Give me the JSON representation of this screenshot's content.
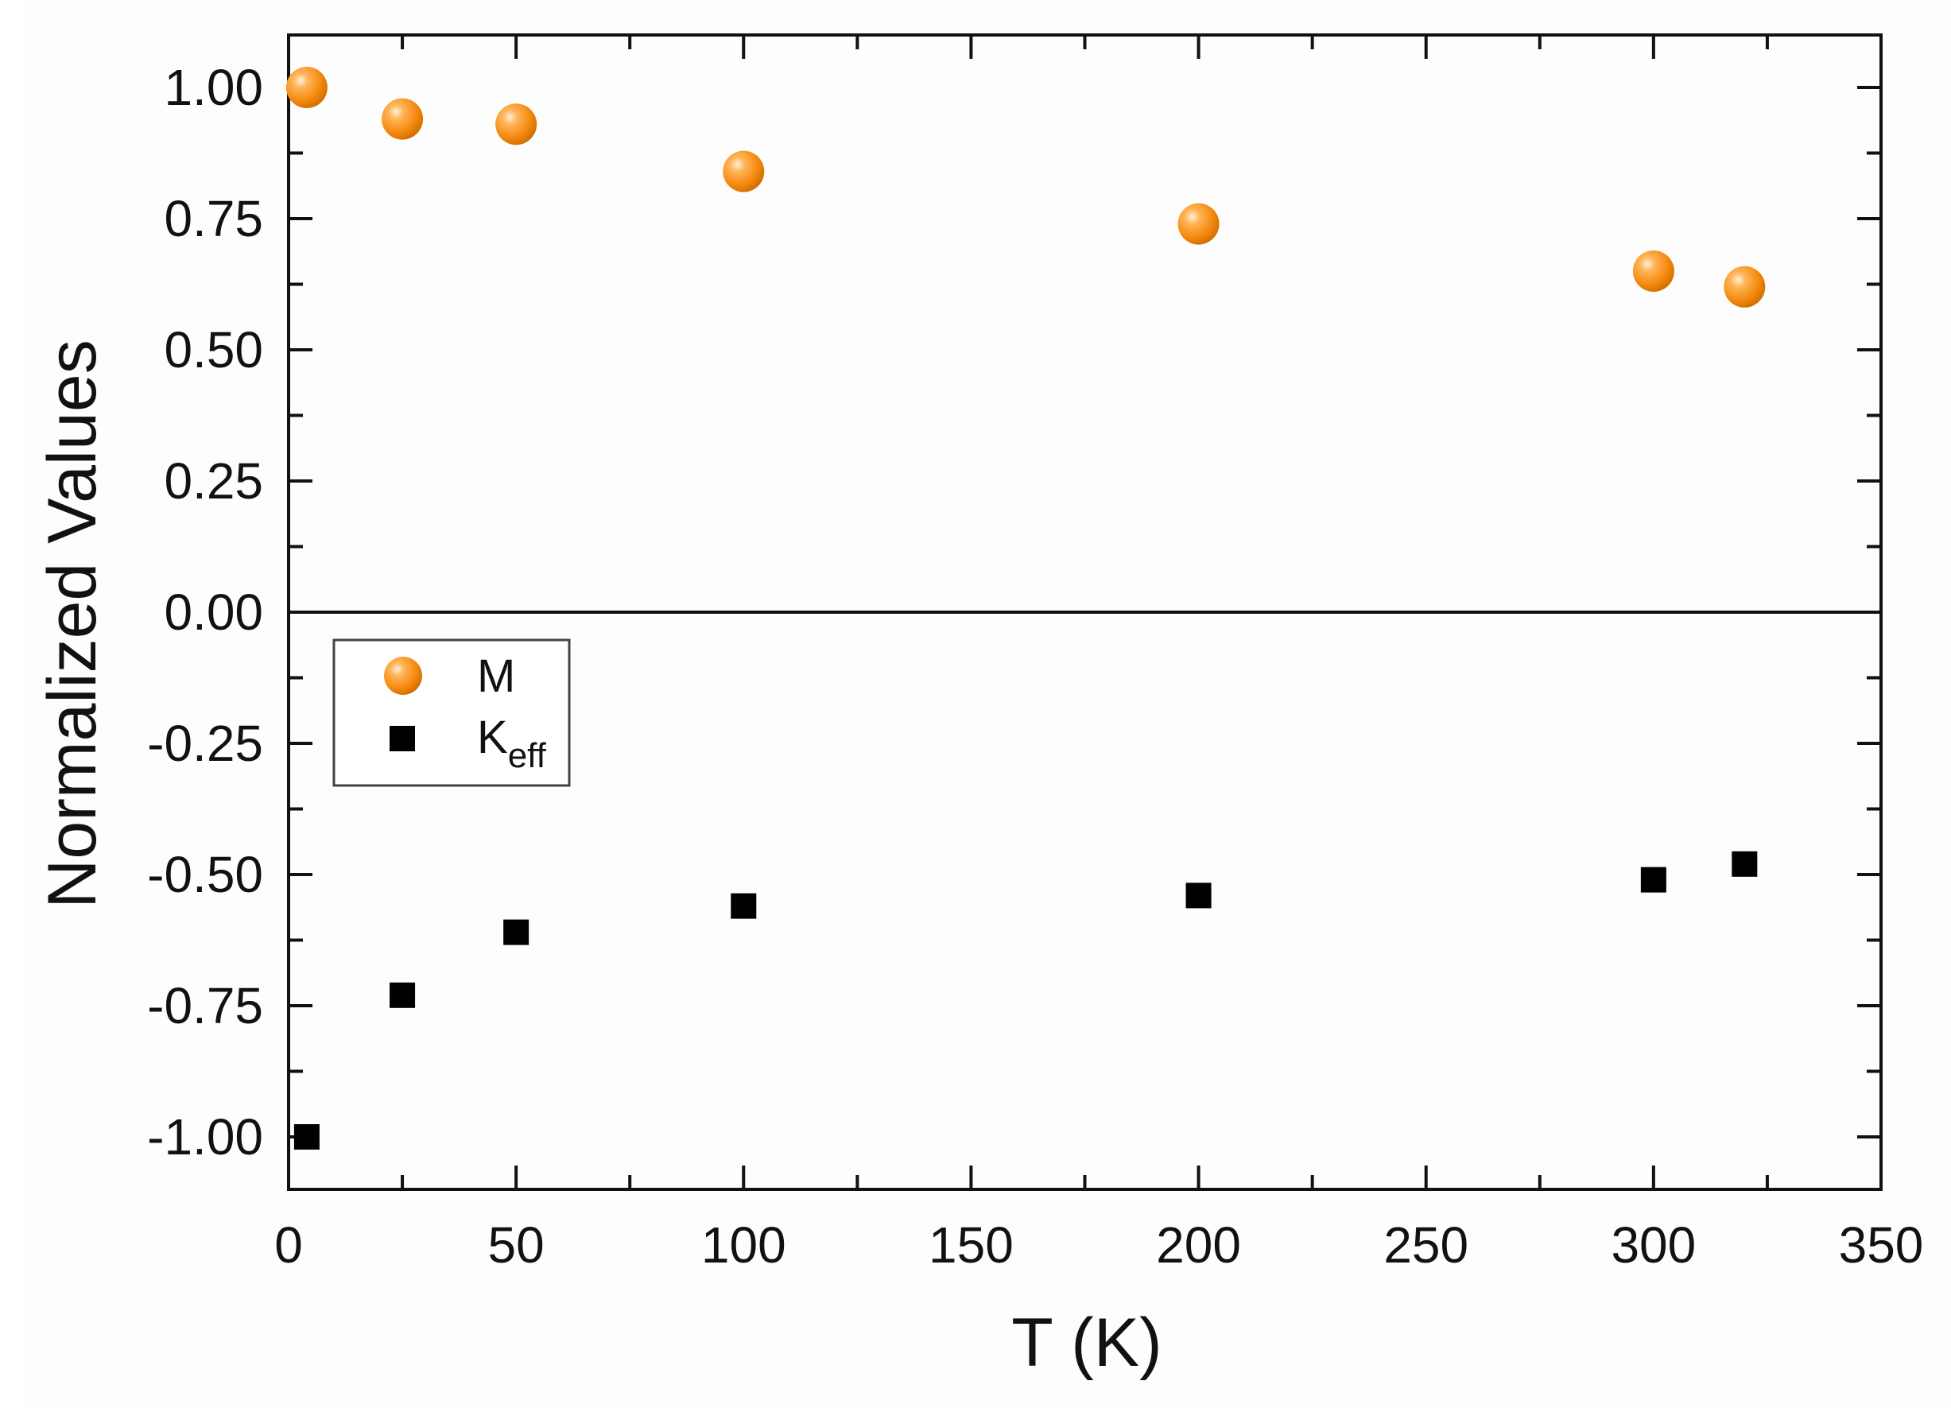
{
  "chart_data": {
    "type": "scatter",
    "xlabel": "T (K)",
    "ylabel": "Normalized Values",
    "xlim": [
      0,
      350
    ],
    "ylim": [
      -1.1,
      1.1
    ],
    "x_ticks": [
      "0",
      "50",
      "100",
      "150",
      "200",
      "250",
      "300",
      "350"
    ],
    "y_ticks": [
      "1.00",
      "0.75",
      "0.50",
      "0.25",
      "0.00",
      "-0.25",
      "-0.50",
      "-0.75",
      "-1.00"
    ],
    "zero_line": true,
    "grid": false,
    "legend_position": "upper-left of lower half",
    "series": [
      {
        "name": "M",
        "marker": "circle",
        "color": "#F7931E",
        "x": [
          4,
          25,
          50,
          100,
          200,
          300,
          320
        ],
        "y": [
          1.0,
          0.94,
          0.93,
          0.84,
          0.74,
          0.65,
          0.62
        ]
      },
      {
        "name": "K",
        "name_subscript": "eff",
        "marker": "square",
        "color": "#000000",
        "x": [
          4,
          25,
          50,
          100,
          200,
          300,
          320
        ],
        "y": [
          -1.0,
          -0.73,
          -0.61,
          -0.56,
          -0.54,
          -0.51,
          -0.48
        ]
      }
    ]
  }
}
